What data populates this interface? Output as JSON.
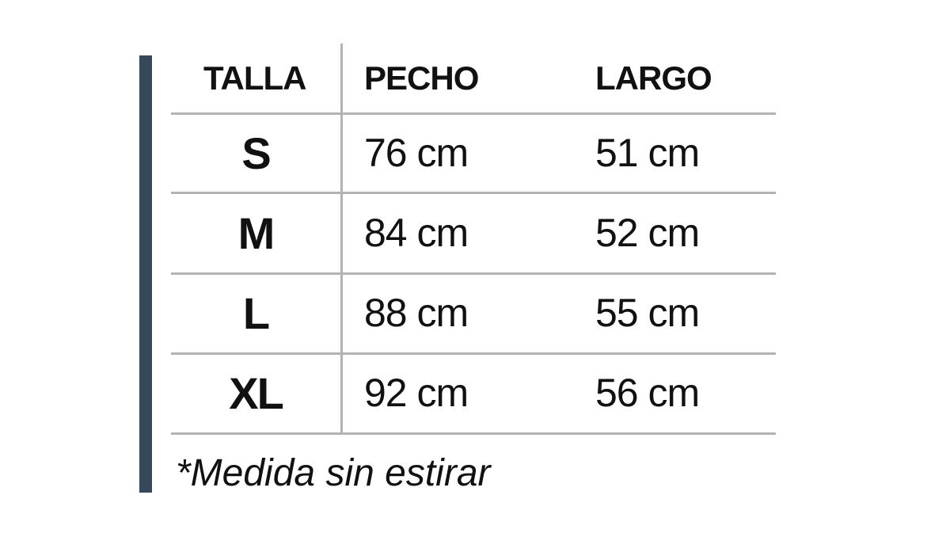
{
  "colors": {
    "accent": "#36495a",
    "rule": "#b3b3b3"
  },
  "table": {
    "headers": [
      "TALLA",
      "PECHO",
      "LARGO"
    ],
    "rows": [
      {
        "talla": "S",
        "pecho": "76 cm",
        "largo": "51 cm"
      },
      {
        "talla": "M",
        "pecho": "84 cm",
        "largo": "52 cm"
      },
      {
        "talla": "L",
        "pecho": "88 cm",
        "largo": "55 cm"
      },
      {
        "talla": "XL",
        "pecho": "92 cm",
        "largo": "56 cm"
      }
    ]
  },
  "footnote": "*Medida sin estirar"
}
